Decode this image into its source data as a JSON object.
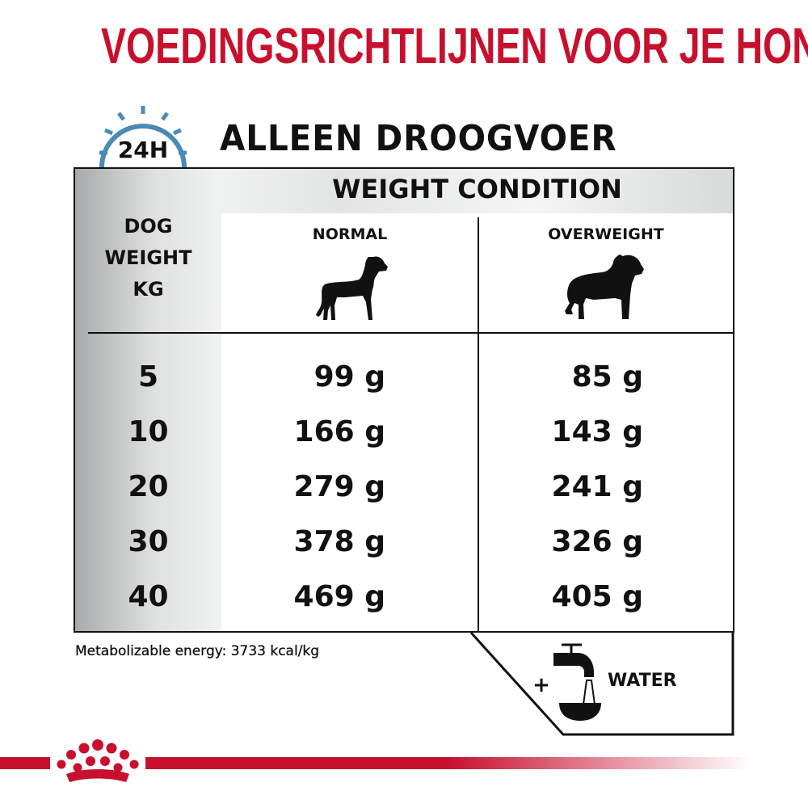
{
  "title": "VOEDINGSRICHTLIJNEN VOOR JE HOND",
  "subtitle": "ALLEEN DROOGVOER",
  "clock_icon_label": "24H",
  "table": {
    "header": "WEIGHT CONDITION",
    "weight_header": [
      "DOG",
      "WEIGHT",
      "KG"
    ],
    "columns": [
      "NORMAL",
      "OVERWEIGHT"
    ],
    "rows": [
      {
        "kg": "5",
        "normal": "99 g",
        "overweight": "85 g"
      },
      {
        "kg": "10",
        "normal": "166 g",
        "overweight": "143 g"
      },
      {
        "kg": "20",
        "normal": "279 g",
        "overweight": "241 g"
      },
      {
        "kg": "30",
        "normal": "378 g",
        "overweight": "326 g"
      },
      {
        "kg": "40",
        "normal": "469 g",
        "overweight": "405 g"
      }
    ]
  },
  "energy": "Metabolizable energy: 3733 kcal/kg",
  "water": {
    "plus": "+",
    "label": "WATER"
  },
  "colors": {
    "brand_red": "#c8102e",
    "clock_blue": "#4a8ab5"
  }
}
